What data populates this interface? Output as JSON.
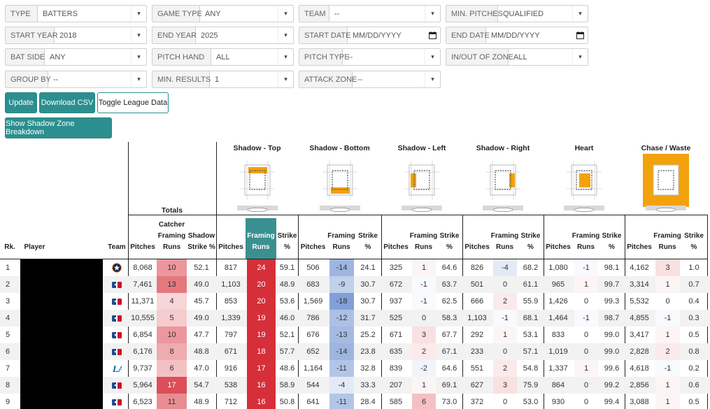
{
  "filters": [
    {
      "label": "TYPE",
      "value": "BATTERS"
    },
    {
      "label": "GAME TYPE",
      "value": "ANY"
    },
    {
      "label": "TEAM",
      "value": "--"
    },
    {
      "label": "MIN. PITCHES",
      "value": "QUALIFIED"
    },
    {
      "label": "START YEAR",
      "value": "2018"
    },
    {
      "label": "END YEAR",
      "value": "2025"
    },
    {
      "label": "START DATE",
      "value": "MM/DD/YYYY"
    },
    {
      "label": "END DATE",
      "value": "MM/DD/YYYY"
    },
    {
      "label": "BAT SIDE",
      "value": "ANY"
    },
    {
      "label": "PITCH HAND",
      "value": "ALL"
    },
    {
      "label": "PITCH TYPE",
      "value": "--"
    },
    {
      "label": "IN/OUT OF ZONE",
      "value": "ALL"
    },
    {
      "label": "GROUP BY",
      "value": "--"
    },
    {
      "label": "MIN. RESULTS",
      "value": "1"
    },
    {
      "label": "ATTACK ZONE",
      "value": "--"
    }
  ],
  "buttons": {
    "update": "Update",
    "download": "Download CSV",
    "toggle": "Toggle League Data",
    "shadow": "Show Shadow Zone Breakdown"
  },
  "zones": [
    "Shadow - Top",
    "Shadow - Bottom",
    "Shadow - Left",
    "Shadow - Right",
    "Heart",
    "Chase / Waste"
  ],
  "totals_label": "Totals",
  "headers": {
    "rk": "Rk.",
    "player": "Player",
    "team": "Team",
    "pitches": "Pitches",
    "catcher_framing_runs": "Catcher Framing Runs",
    "shadow_strike_pct": "Shadow Strike %",
    "framing_runs": "Framing Runs",
    "strike_pct": "Strike %"
  },
  "colors": {
    "accent": "#2c8f8f",
    "zone_highlight": "#f2a20c",
    "red_strong": "#d62f3a",
    "blue": "#aabbdd"
  },
  "rows": [
    {
      "rk": "1",
      "team": "HOU",
      "pitches": "8,068",
      "cfr": "10",
      "ssp": "52.1",
      "zones": [
        [
          "817",
          "24",
          "59.1"
        ],
        [
          "506",
          "-14",
          "24.1"
        ],
        [
          "325",
          "1",
          "64.6"
        ],
        [
          "826",
          "-4",
          "68.2"
        ],
        [
          "1,080",
          "-1",
          "98.1"
        ],
        [
          "4,162",
          "3",
          "1.0"
        ]
      ]
    },
    {
      "rk": "2",
      "team": "MLB",
      "pitches": "7,461",
      "cfr": "13",
      "ssp": "49.0",
      "zones": [
        [
          "1,103",
          "20",
          "48.9"
        ],
        [
          "683",
          "-9",
          "30.7"
        ],
        [
          "672",
          "-1",
          "63.7"
        ],
        [
          "501",
          "0",
          "61.1"
        ],
        [
          "965",
          "1",
          "99.7"
        ],
        [
          "3,314",
          "1",
          "0.7"
        ]
      ]
    },
    {
      "rk": "3",
      "team": "MLB",
      "pitches": "11,371",
      "cfr": "4",
      "ssp": "45.7",
      "zones": [
        [
          "853",
          "20",
          "53.6"
        ],
        [
          "1,569",
          "-18",
          "30.7"
        ],
        [
          "937",
          "-1",
          "62.5"
        ],
        [
          "666",
          "2",
          "55.9"
        ],
        [
          "1,426",
          "0",
          "99.3"
        ],
        [
          "5,532",
          "0",
          "0.4"
        ]
      ]
    },
    {
      "rk": "4",
      "team": "MLB",
      "pitches": "10,555",
      "cfr": "5",
      "ssp": "49.0",
      "zones": [
        [
          "1,339",
          "19",
          "46.0"
        ],
        [
          "786",
          "-12",
          "31.7"
        ],
        [
          "525",
          "0",
          "58.3"
        ],
        [
          "1,103",
          "-1",
          "68.1"
        ],
        [
          "1,464",
          "-1",
          "98.7"
        ],
        [
          "4,855",
          "-1",
          "0.3"
        ]
      ]
    },
    {
      "rk": "5",
      "team": "MLB",
      "pitches": "6,854",
      "cfr": "10",
      "ssp": "47.7",
      "zones": [
        [
          "797",
          "19",
          "52.1"
        ],
        [
          "676",
          "-13",
          "25.2"
        ],
        [
          "671",
          "3",
          "67.7"
        ],
        [
          "292",
          "1",
          "53.1"
        ],
        [
          "833",
          "0",
          "99.0"
        ],
        [
          "3,417",
          "1",
          "0.5"
        ]
      ]
    },
    {
      "rk": "6",
      "team": "MLB",
      "pitches": "6,176",
      "cfr": "8",
      "ssp": "48.8",
      "zones": [
        [
          "671",
          "18",
          "57.7"
        ],
        [
          "652",
          "-14",
          "23.8"
        ],
        [
          "635",
          "2",
          "67.1"
        ],
        [
          "233",
          "0",
          "57.1"
        ],
        [
          "1,019",
          "0",
          "99.0"
        ],
        [
          "2,828",
          "2",
          "0.8"
        ]
      ]
    },
    {
      "rk": "7",
      "team": "LA",
      "pitches": "9,737",
      "cfr": "6",
      "ssp": "47.0",
      "zones": [
        [
          "916",
          "17",
          "48.6"
        ],
        [
          "1,164",
          "-11",
          "32.8"
        ],
        [
          "839",
          "-2",
          "64.6"
        ],
        [
          "551",
          "2",
          "54.8"
        ],
        [
          "1,337",
          "1",
          "99.6"
        ],
        [
          "4,618",
          "-1",
          "0.2"
        ]
      ]
    },
    {
      "rk": "8",
      "team": "MLB",
      "pitches": "5,964",
      "cfr": "17",
      "ssp": "54.7",
      "zones": [
        [
          "538",
          "16",
          "58.9"
        ],
        [
          "544",
          "-4",
          "33.3"
        ],
        [
          "207",
          "1",
          "69.1"
        ],
        [
          "627",
          "3",
          "75.9"
        ],
        [
          "864",
          "0",
          "99.2"
        ],
        [
          "2,856",
          "1",
          "0.6"
        ]
      ]
    },
    {
      "rk": "9",
      "team": "MLB",
      "pitches": "6,523",
      "cfr": "11",
      "ssp": "48.9",
      "zones": [
        [
          "712",
          "16",
          "50.8"
        ],
        [
          "641",
          "-11",
          "28.4"
        ],
        [
          "585",
          "6",
          "73.0"
        ],
        [
          "372",
          "0",
          "53.0"
        ],
        [
          "930",
          "0",
          "99.4"
        ],
        [
          "3,088",
          "1",
          "0.5"
        ]
      ]
    }
  ]
}
